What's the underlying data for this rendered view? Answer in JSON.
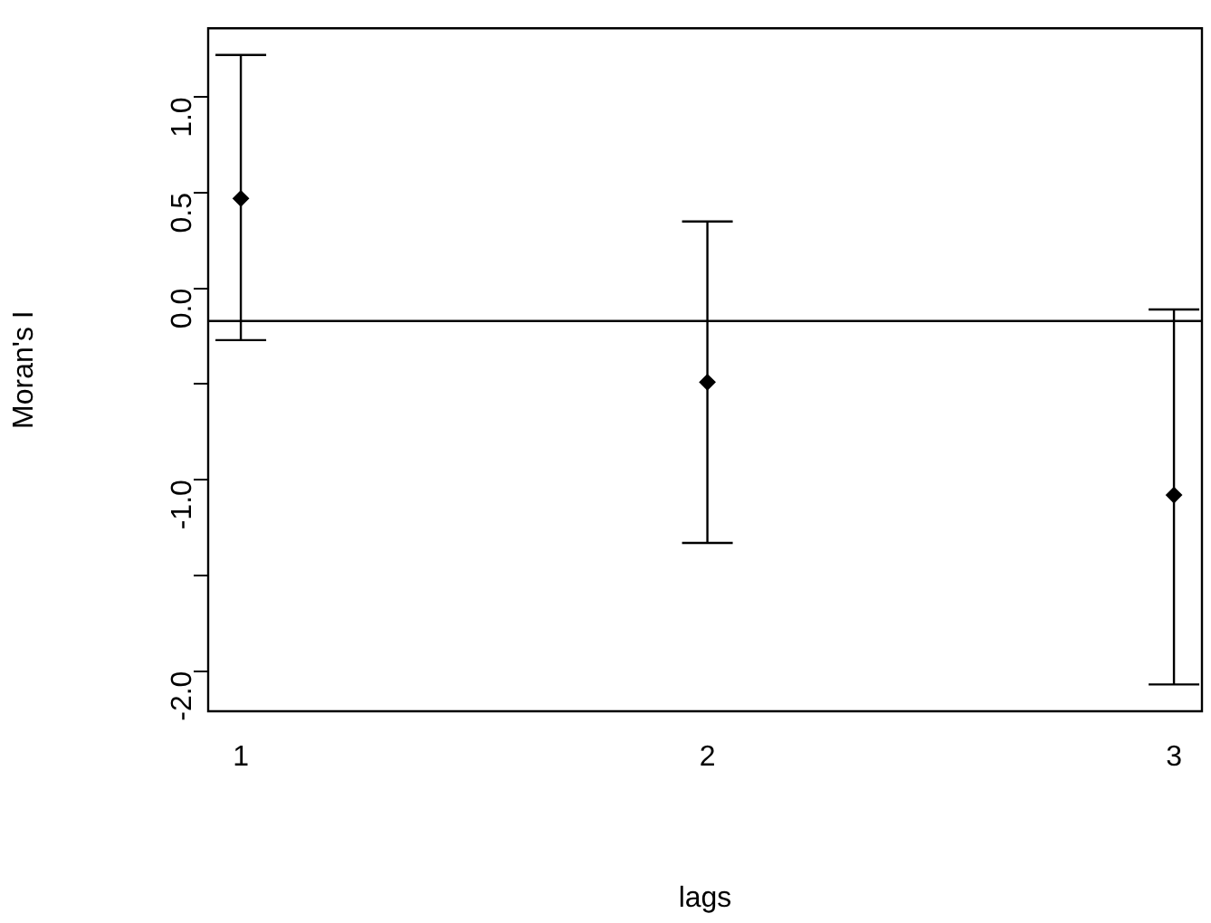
{
  "chart_data": {
    "type": "scatter",
    "xlabel": "lags",
    "ylabel": "Moran's I",
    "x": [
      1,
      2,
      3
    ],
    "values": [
      0.47,
      -0.49,
      -1.08
    ],
    "color": "#000000",
    "marker": "diamond",
    "errors": [
      [
        -0.27,
        1.22
      ],
      [
        -1.33,
        0.35
      ],
      [
        -2.07,
        -0.11
      ]
    ],
    "xlim": [
      0.93,
      3.06
    ],
    "xticks": [
      1,
      2,
      3
    ],
    "ylim": [
      -2.21,
      1.36
    ],
    "yticks": [
      {
        "value": -2.0,
        "label": "-2.0"
      },
      {
        "value": -1.5,
        "label": null
      },
      {
        "value": -1.0,
        "label": "-1.0"
      },
      {
        "value": -0.5,
        "label": null
      },
      {
        "value": 0.0,
        "label": "0.0"
      },
      {
        "value": 0.5,
        "label": "0.5"
      },
      {
        "value": 1.0,
        "label": "1.0"
      }
    ],
    "ref_lines": [
      {
        "axis": "y",
        "value": -0.17,
        "color": "#000000"
      }
    ],
    "grid": false,
    "legend": false
  }
}
